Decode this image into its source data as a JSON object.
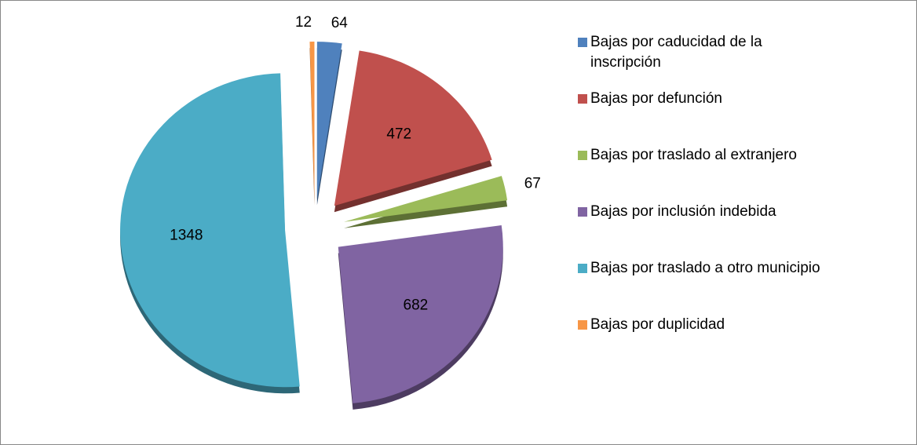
{
  "chart_data": {
    "type": "pie",
    "categories": [
      "Bajas por caducidad de la inscripción",
      "Bajas por defunción",
      "Bajas por traslado al extranjero",
      "Bajas por inclusión indebida",
      "Bajas por traslado a otro municipio",
      "Bajas por duplicidad"
    ],
    "values": [
      64,
      472,
      67,
      682,
      1348,
      12
    ],
    "colors": [
      "#4f81bd",
      "#c0504d",
      "#9bbb59",
      "#8064a2",
      "#4bacc6",
      "#f79646"
    ],
    "legend": "right"
  }
}
